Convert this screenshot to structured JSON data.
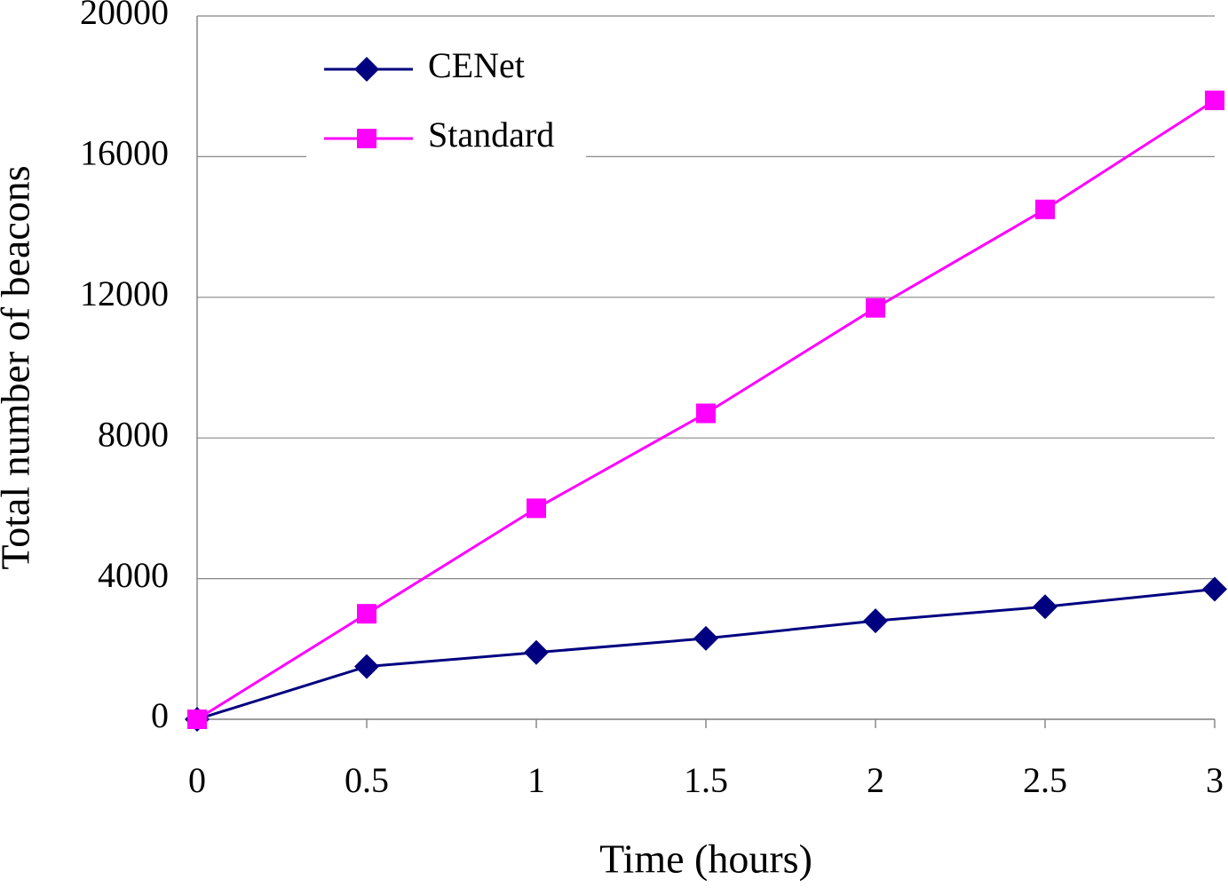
{
  "chart_data": {
    "type": "line",
    "x_label": "Time (hours)",
    "y_label": "Total number of beacons",
    "x": [
      0,
      0.5,
      1,
      1.5,
      2,
      2.5,
      3
    ],
    "series": [
      {
        "name": "CENet",
        "color": "#000080",
        "marker": "diamond",
        "values": [
          0,
          1500,
          1900,
          2300,
          2800,
          3200,
          3700
        ]
      },
      {
        "name": "Standard",
        "color": "#ff00ff",
        "marker": "square",
        "values": [
          0,
          3000,
          6000,
          8700,
          11700,
          14500,
          17600
        ]
      }
    ],
    "xlim": [
      0,
      3
    ],
    "xticks": [
      0,
      0.5,
      1,
      1.5,
      2,
      2.5,
      3
    ],
    "ylim": [
      0,
      20000
    ],
    "yticks": [
      0,
      4000,
      8000,
      12000,
      16000,
      20000
    ],
    "grid": true,
    "legend": "upper left"
  }
}
